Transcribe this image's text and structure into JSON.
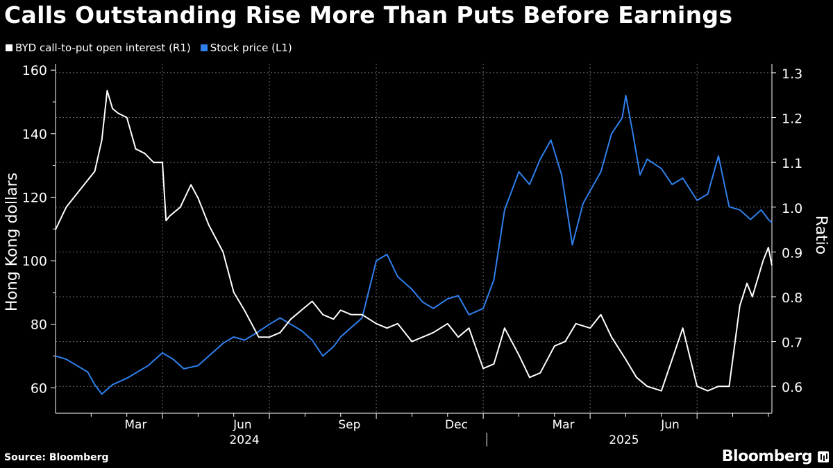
{
  "chart_data": {
    "type": "line",
    "title": "Calls Outstanding Rise More Than Puts Before Earnings",
    "legend": [
      {
        "name": "BYD call-to-put open interest (R1)",
        "color": "#ffffff"
      },
      {
        "name": "Stock price (L1)",
        "color": "#2f80ed"
      }
    ],
    "ylabel_left": "Hong Kong dollars",
    "ylabel_right": "Ratio",
    "ylim_left": [
      52,
      162
    ],
    "ylim_right": [
      0.54,
      1.32
    ],
    "yticks_left": [
      60,
      80,
      100,
      120,
      140,
      160
    ],
    "yticks_right": [
      0.6,
      0.7,
      0.8,
      0.9,
      1.0,
      1.1,
      1.2,
      1.3
    ],
    "ytick_labels_right": [
      "0.6",
      "0.7",
      "0.8",
      "0.9",
      "1.0",
      "1.1",
      "1.2",
      "1.3"
    ],
    "x_month_ticks": [
      "Mar",
      "Jun",
      "Sep",
      "Dec",
      "Mar",
      "Jun"
    ],
    "x_year_labels": [
      "2024",
      "2025"
    ],
    "xlim_months": [
      0,
      20.1
    ],
    "grid": true,
    "series": [
      {
        "name": "BYD call-to-put open interest (R1)",
        "axis": "right",
        "color": "#ffffff",
        "x": [
          0,
          0.3,
          0.6,
          0.9,
          1.1,
          1.3,
          1.45,
          1.6,
          1.75,
          2,
          2.25,
          2.5,
          2.75,
          3,
          3.1,
          3.2,
          3.5,
          3.8,
          4,
          4.3,
          4.7,
          5,
          5.3,
          5.7,
          6,
          6.3,
          6.6,
          6.9,
          7.2,
          7.5,
          7.8,
          8,
          8.3,
          8.6,
          9,
          9.3,
          9.6,
          10,
          10.3,
          10.6,
          11,
          11.3,
          11.6,
          12,
          12.3,
          12.6,
          13,
          13.3,
          13.6,
          14,
          14.3,
          14.6,
          15,
          15.3,
          15.6,
          16,
          16.3,
          16.6,
          17,
          17.3,
          17.6,
          18,
          18.3,
          18.6,
          18.9,
          19.2,
          19.4,
          19.55,
          19.7,
          19.85,
          20,
          20.1
        ],
        "values": [
          0.95,
          1.0,
          1.03,
          1.06,
          1.08,
          1.15,
          1.26,
          1.22,
          1.21,
          1.2,
          1.13,
          1.12,
          1.1,
          1.1,
          0.97,
          0.98,
          1.0,
          1.05,
          1.02,
          0.96,
          0.9,
          0.81,
          0.77,
          0.71,
          0.71,
          0.72,
          0.75,
          0.77,
          0.79,
          0.76,
          0.75,
          0.77,
          0.76,
          0.76,
          0.74,
          0.73,
          0.74,
          0.7,
          0.71,
          0.72,
          0.74,
          0.71,
          0.73,
          0.64,
          0.65,
          0.73,
          0.67,
          0.62,
          0.63,
          0.69,
          0.7,
          0.74,
          0.73,
          0.76,
          0.71,
          0.66,
          0.62,
          0.6,
          0.59,
          0.66,
          0.73,
          0.6,
          0.59,
          0.6,
          0.6,
          0.78,
          0.83,
          0.8,
          0.84,
          0.88,
          0.91,
          0.87
        ]
      },
      {
        "name": "Stock price (L1)",
        "axis": "left",
        "color": "#2f80ed",
        "x": [
          0,
          0.3,
          0.6,
          0.9,
          1.1,
          1.3,
          1.6,
          2,
          2.3,
          2.6,
          3,
          3.3,
          3.6,
          4,
          4.3,
          4.7,
          5,
          5.3,
          5.6,
          6,
          6.3,
          6.6,
          6.9,
          7.2,
          7.5,
          7.8,
          8,
          8.3,
          8.6,
          9,
          9.3,
          9.6,
          10,
          10.3,
          10.6,
          11,
          11.3,
          11.6,
          12,
          12.3,
          12.6,
          13,
          13.3,
          13.6,
          13.9,
          14.2,
          14.5,
          14.8,
          15,
          15.3,
          15.6,
          15.9,
          16,
          16.2,
          16.4,
          16.6,
          17,
          17.3,
          17.6,
          18,
          18.3,
          18.6,
          18.9,
          19.2,
          19.5,
          19.8,
          20,
          20.1
        ],
        "values": [
          70,
          69,
          67,
          65,
          61,
          58,
          61,
          63,
          65,
          67,
          71,
          69,
          66,
          67,
          70,
          74,
          76,
          75,
          77,
          80,
          82,
          80,
          78,
          75,
          70,
          73,
          76,
          79,
          82,
          100,
          102,
          95,
          91,
          87,
          85,
          88,
          89,
          83,
          85,
          94,
          116,
          128,
          124,
          132,
          138,
          127,
          105,
          118,
          122,
          128,
          140,
          145,
          152,
          140,
          127,
          132,
          129,
          124,
          126,
          119,
          121,
          133,
          117,
          116,
          113,
          116,
          113,
          112
        ]
      }
    ]
  },
  "source": "Source: Bloomberg",
  "brand": "Bloomberg"
}
